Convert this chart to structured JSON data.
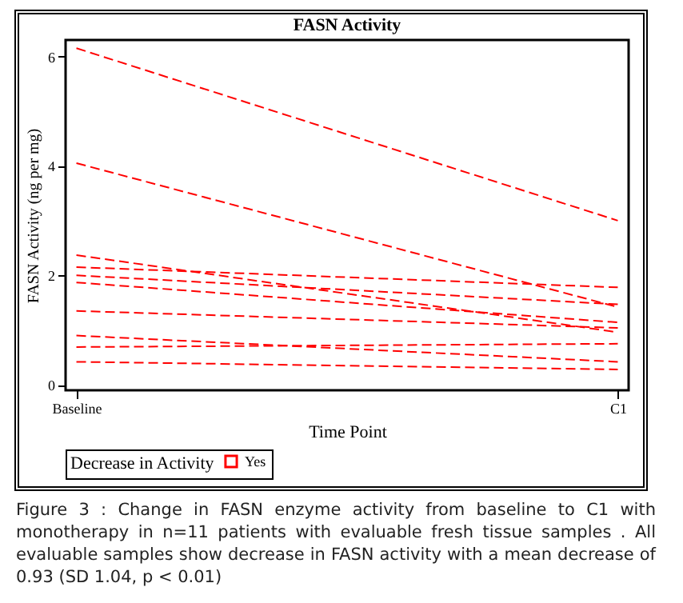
{
  "chart_data": {
    "type": "line",
    "title": "FASN Activity",
    "xlabel": "Time Point",
    "ylabel": "FASN Activity (ng per mg)",
    "legend_title": "Decrease in Activity",
    "categories": [
      "Baseline",
      "C1"
    ],
    "series": [
      {
        "name": "Yes",
        "color": "#ff0000",
        "values": [
          6.15,
          3.0
        ]
      },
      {
        "color": "#ff0000",
        "values": [
          4.05,
          1.42
        ]
      },
      {
        "color": "#ff0000",
        "values": [
          2.37,
          0.96
        ]
      },
      {
        "color": "#ff0000",
        "values": [
          2.15,
          1.78
        ]
      },
      {
        "color": "#ff0000",
        "values": [
          2.0,
          1.47
        ]
      },
      {
        "color": "#ff0000",
        "values": [
          1.87,
          1.14
        ]
      },
      {
        "color": "#ff0000",
        "values": [
          1.35,
          1.04
        ]
      },
      {
        "color": "#ff0000",
        "values": [
          0.9,
          0.42
        ]
      },
      {
        "color": "#ff0000",
        "values": [
          0.69,
          0.75
        ]
      },
      {
        "color": "#ff0000",
        "values": [
          0.42,
          0.28
        ]
      }
    ],
    "ylim": [
      -0.1,
      6.3
    ],
    "yticks": [
      0,
      2,
      4,
      6
    ],
    "grid": false,
    "legend": "bottom",
    "line_style": "dashed",
    "marker": "none",
    "annotations": [
      "Figure 3 : Change in FASN enzyme activity from baseline to C1 with monotherapy in n=11 patients with evaluable fresh tissue samples . All evaluable samples show decrease in FASN activity with a mean decrease of  0.93 (SD 1.04, p < 0.01)"
    ]
  }
}
